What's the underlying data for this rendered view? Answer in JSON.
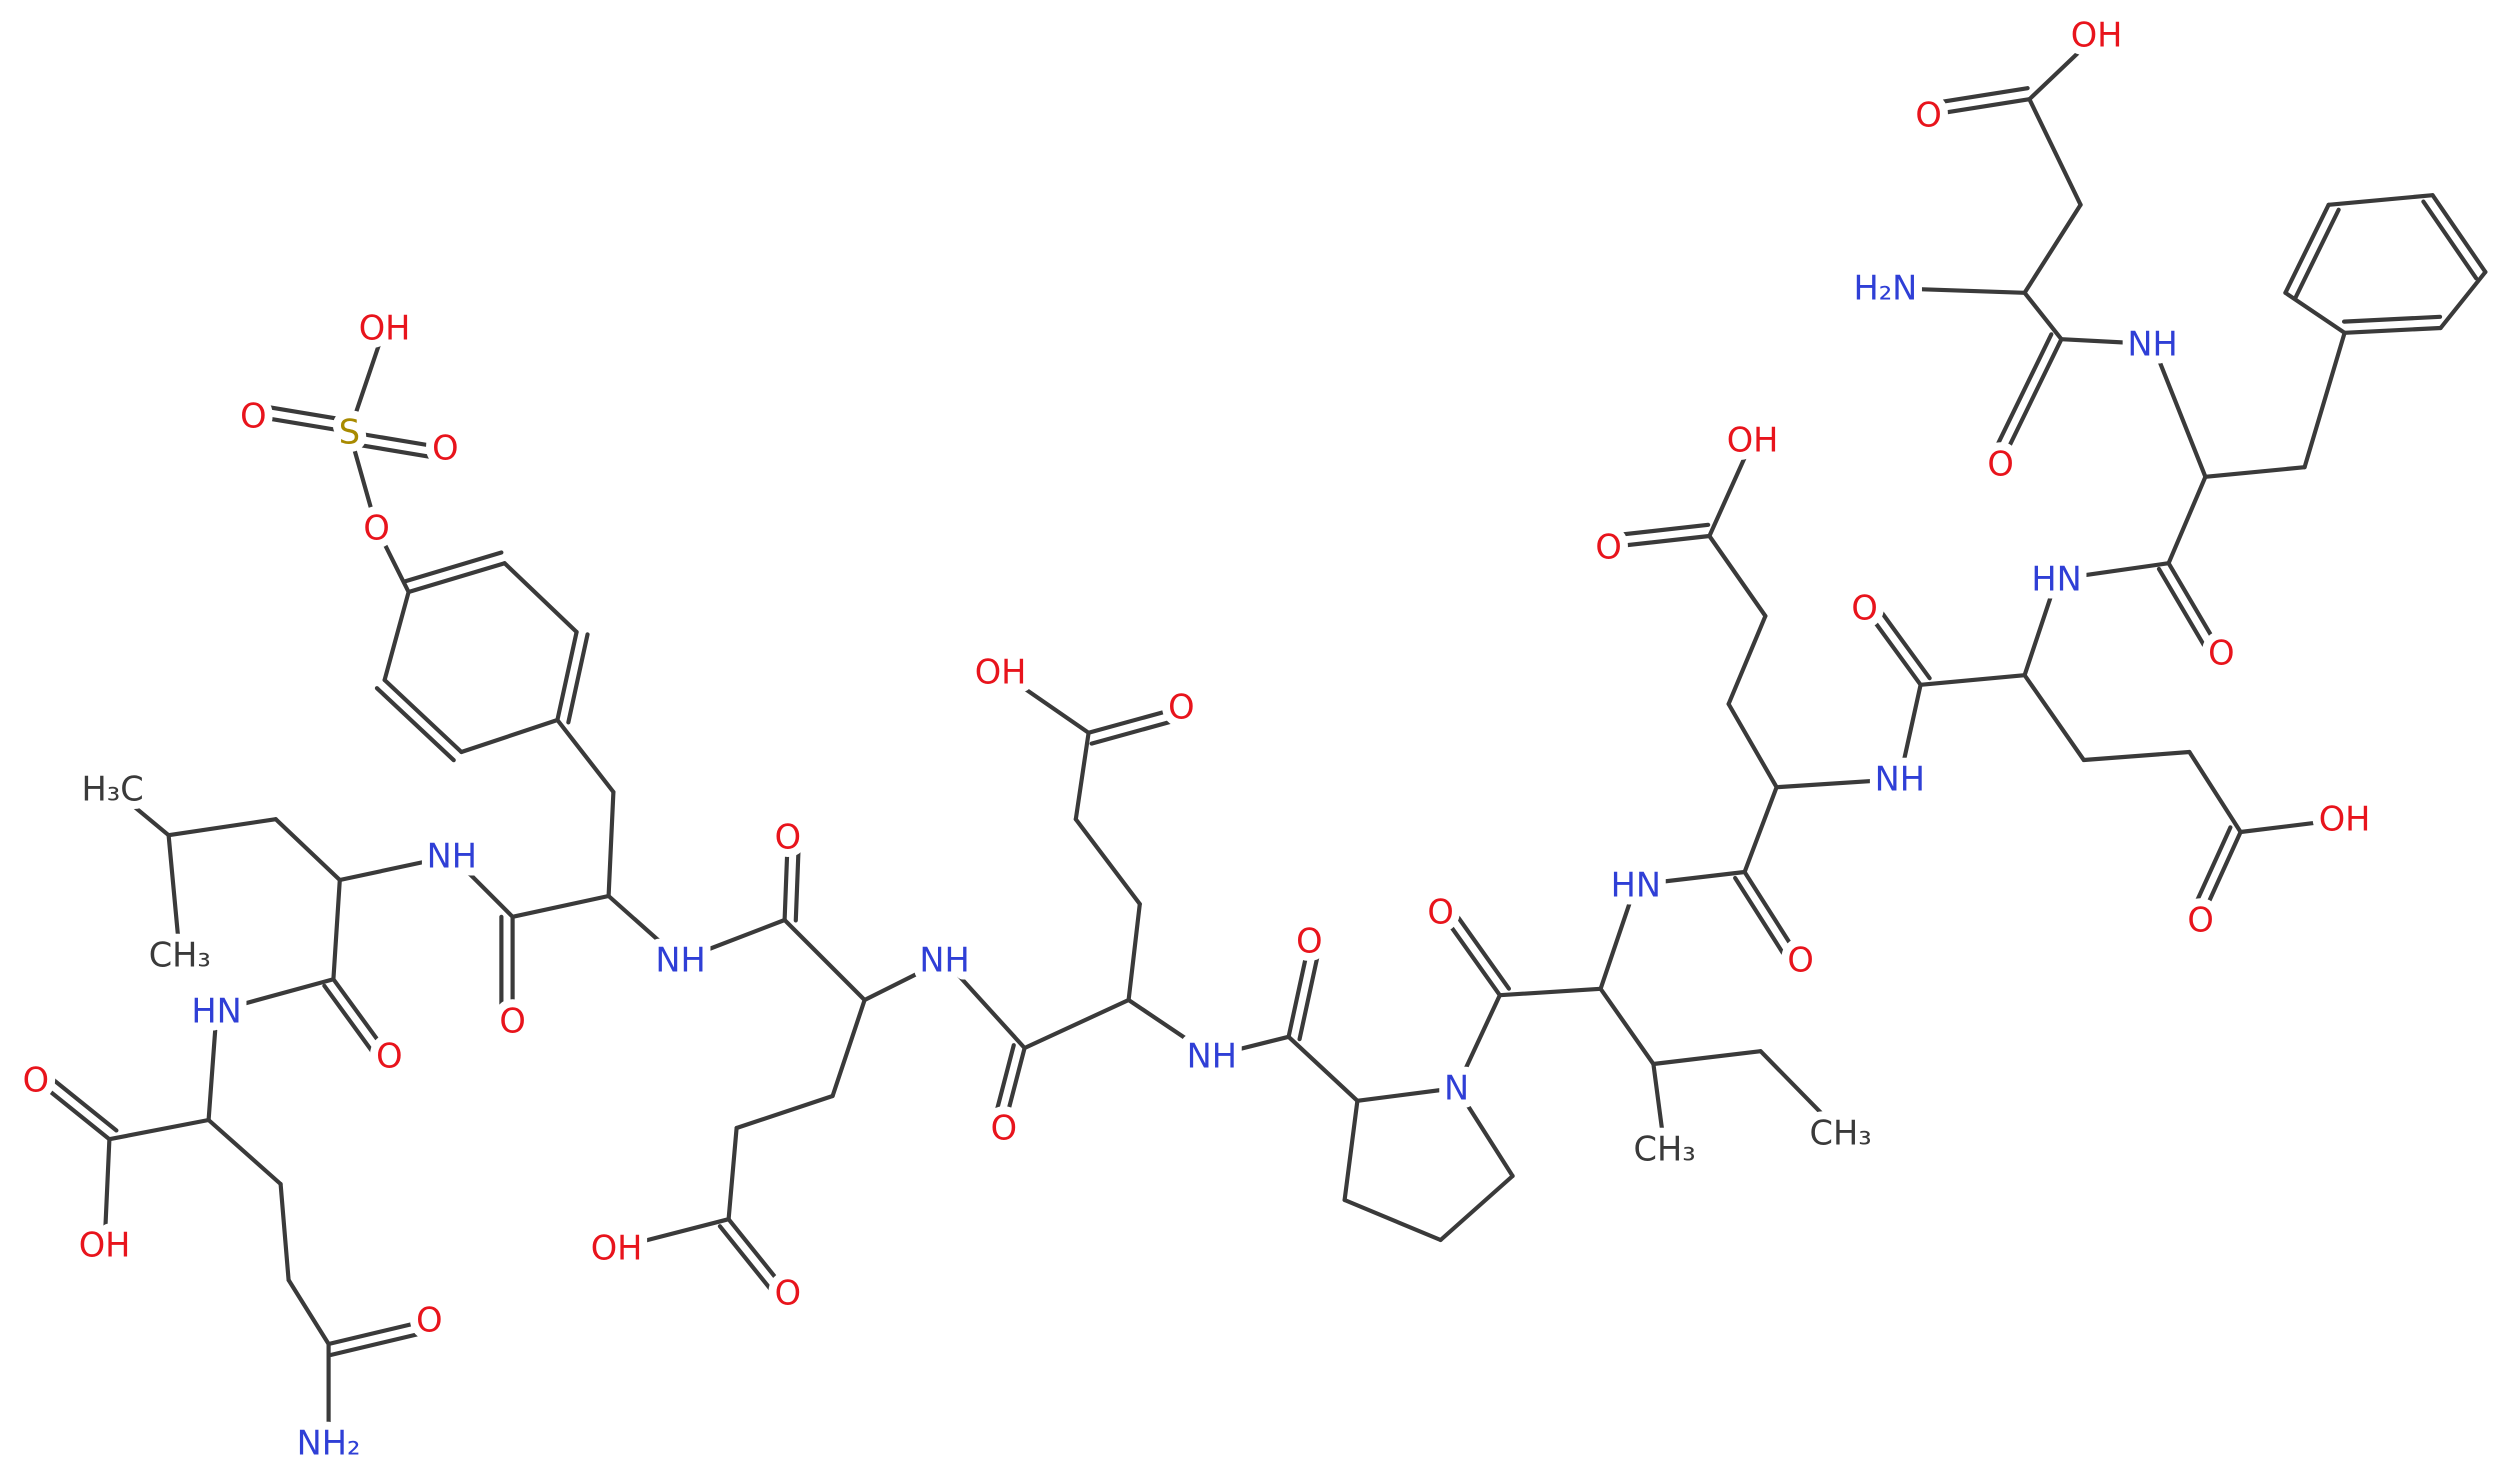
{
  "atoms": [
    "OH",
    "O",
    "H₂N",
    "NH",
    "O",
    "HN",
    "O",
    "O",
    "NH",
    "O",
    "OH",
    "OH",
    "O",
    "HN",
    "O",
    "O",
    "N",
    "CH₃",
    "CH₃",
    "O",
    "NH",
    "OH",
    "O",
    "NH",
    "O",
    "OH",
    "O",
    "NH",
    "O",
    "NH",
    "O",
    "OH",
    "O",
    "S",
    "O",
    "O",
    "H₃C",
    "CH₃",
    "HN",
    "O",
    "O",
    "OH",
    "O",
    "NH₂"
  ]
}
